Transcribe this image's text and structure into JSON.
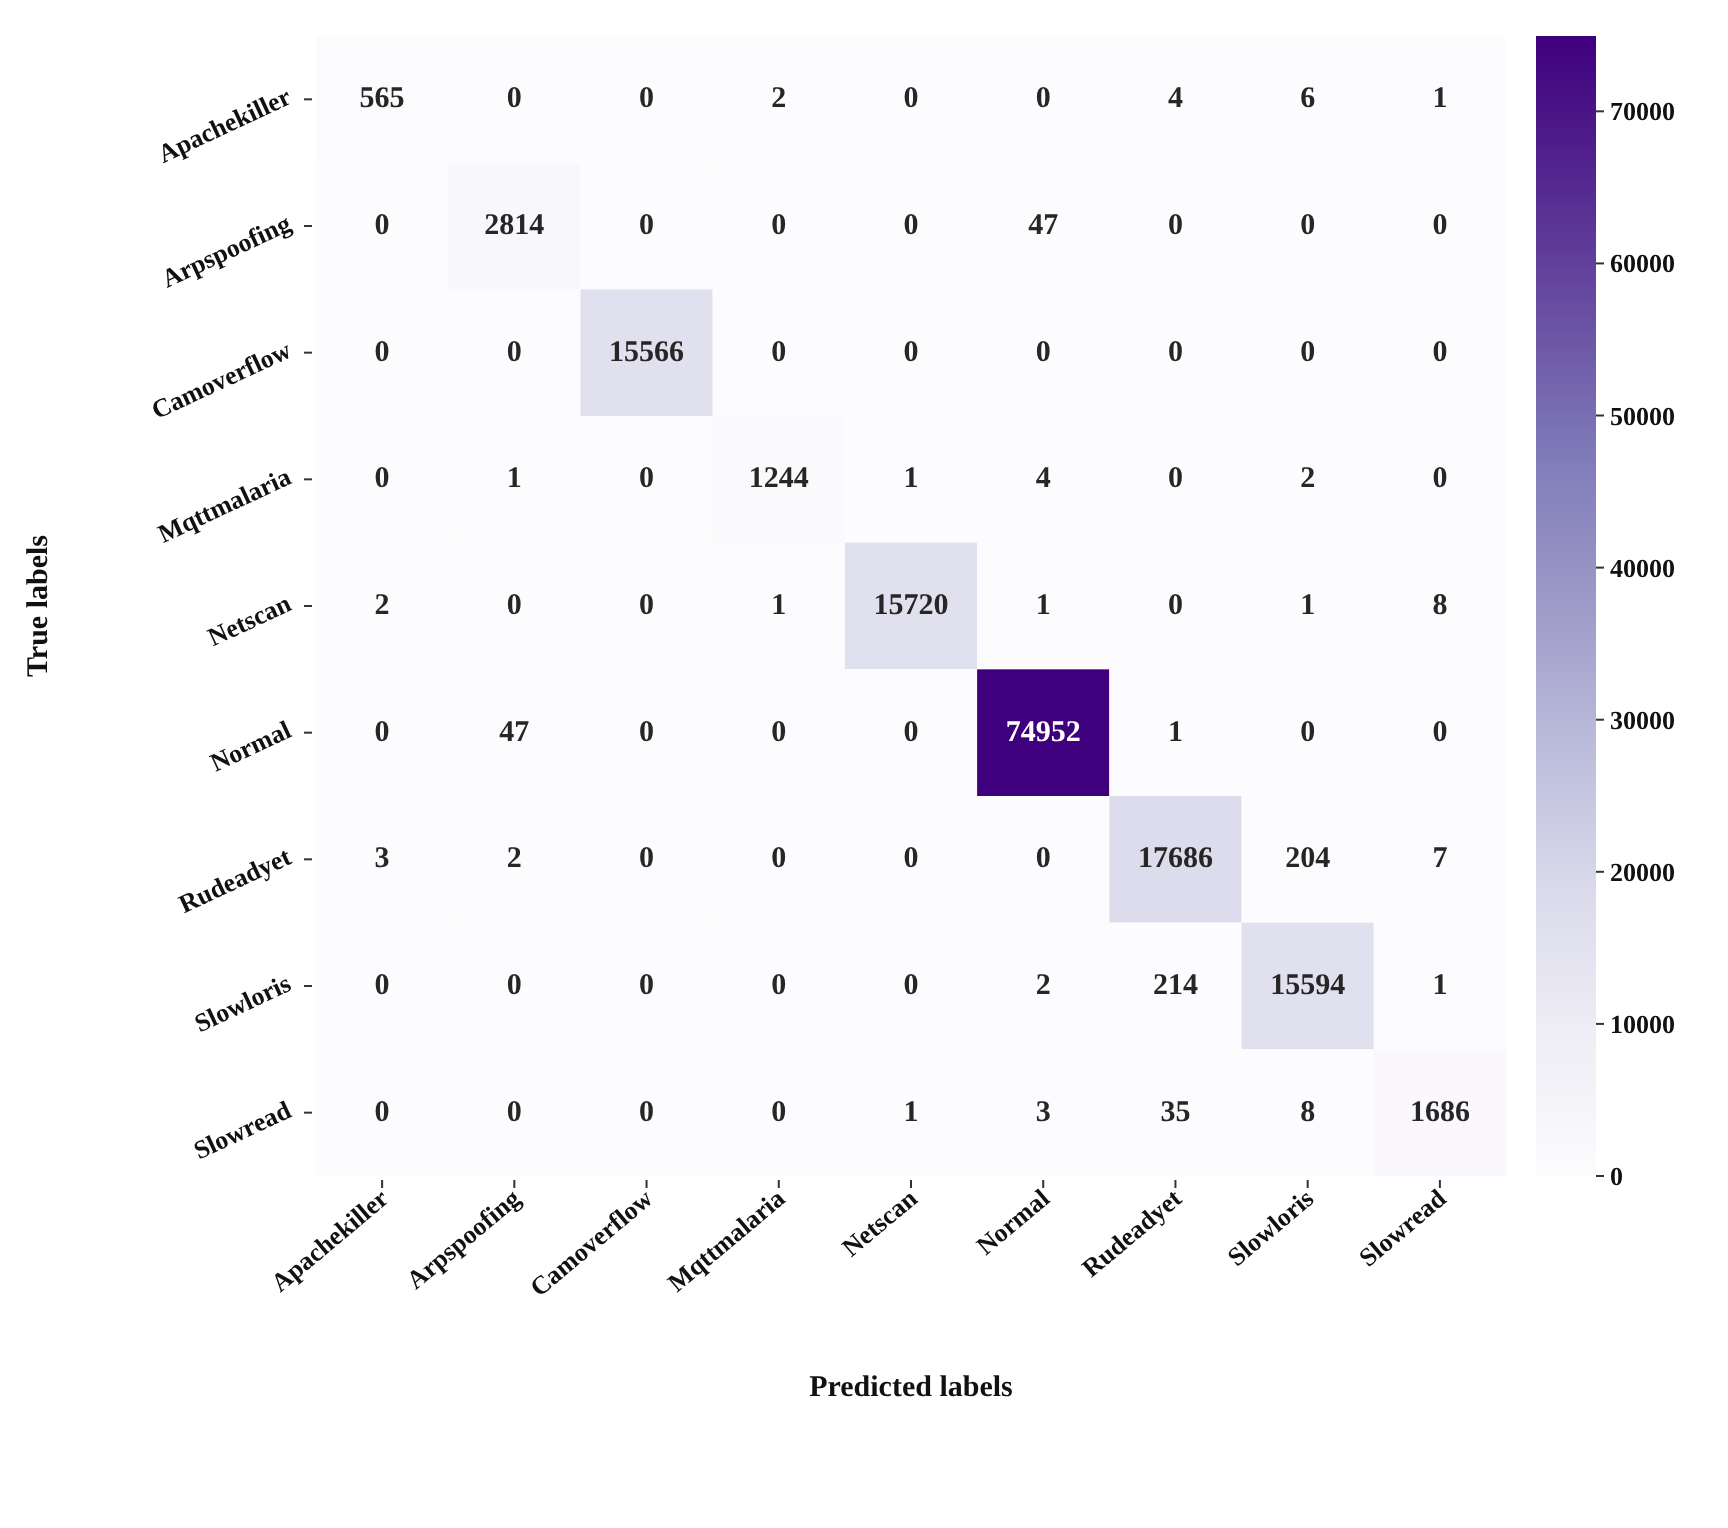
{
  "chart_data": {
    "type": "heatmap",
    "xlabel": "Predicted labels",
    "ylabel": "True labels",
    "categories": [
      "Apachekiller",
      "Arpspoofing",
      "Camoverflow",
      "Mqttmalaria",
      "Netscan",
      "Normal",
      "Rudeadyet",
      "Slowloris",
      "Slowread"
    ],
    "y_categories": [
      "Apachekiller",
      "Arpspoofing",
      "Camoverflow",
      "Mqttmalaria",
      "Netscan",
      "Normal",
      "Rudeadyet",
      "Slowloris",
      "Slowread"
    ],
    "cells": [
      [
        565,
        0,
        0,
        2,
        0,
        0,
        4,
        6,
        1
      ],
      [
        0,
        2814,
        0,
        0,
        0,
        47,
        0,
        0,
        0
      ],
      [
        0,
        0,
        15566,
        0,
        0,
        0,
        0,
        0,
        0
      ],
      [
        0,
        1,
        0,
        1244,
        1,
        4,
        0,
        2,
        0
      ],
      [
        2,
        0,
        0,
        1,
        15720,
        1,
        0,
        1,
        8
      ],
      [
        0,
        47,
        0,
        0,
        0,
        74952,
        1,
        0,
        0
      ],
      [
        3,
        2,
        0,
        0,
        0,
        0,
        17686,
        204,
        7
      ],
      [
        0,
        0,
        0,
        0,
        0,
        2,
        214,
        15594,
        1
      ],
      [
        0,
        0,
        0,
        0,
        1,
        3,
        35,
        8,
        1686
      ]
    ],
    "clim": [
      0,
      74952
    ],
    "cticks": [
      0,
      10000,
      20000,
      30000,
      40000,
      50000,
      60000,
      70000
    ],
    "data_labels": true
  }
}
